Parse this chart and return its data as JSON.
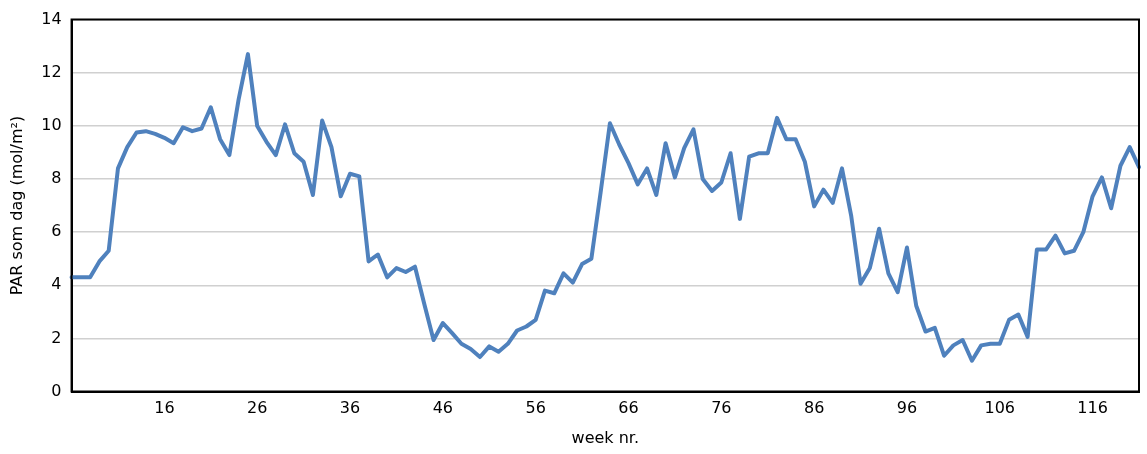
{
  "chart_data": {
    "type": "line",
    "xlabel": "week nr.",
    "ylabel": "PAR som dag (mol/m²)",
    "categories": [
      null,
      null,
      null,
      null,
      null,
      null,
      null,
      null,
      null,
      null,
      "16",
      null,
      null,
      null,
      null,
      null,
      null,
      null,
      null,
      null,
      "26",
      null,
      null,
      null,
      null,
      null,
      null,
      null,
      null,
      null,
      "36",
      null,
      null,
      null,
      null,
      null,
      null,
      null,
      null,
      null,
      "46",
      null,
      null,
      null,
      null,
      null,
      null,
      null,
      null,
      null,
      "56",
      null,
      null,
      null,
      null,
      null,
      null,
      null,
      null,
      null,
      "66",
      null,
      null,
      null,
      null,
      null,
      null,
      null,
      null,
      null,
      "76",
      null,
      null,
      null,
      null,
      null,
      null,
      null,
      null,
      null,
      "86",
      null,
      null,
      null,
      null,
      null,
      null,
      null,
      null,
      null,
      "96",
      null,
      null,
      null,
      null,
      null,
      null,
      null,
      null,
      null,
      "106",
      null,
      null,
      null,
      null,
      null,
      null,
      null,
      null,
      null,
      "116",
      null,
      null,
      null,
      null,
      null
    ],
    "series": [
      {
        "color": "#4f81bd",
        "values": [
          4.3,
          4.3,
          4.3,
          4.9,
          5.3,
          8.4,
          9.2,
          9.75,
          9.8,
          9.7,
          9.55,
          9.35,
          9.95,
          9.8,
          9.9,
          10.7,
          9.5,
          8.9,
          11.0,
          12.7,
          10.0,
          9.4,
          8.9,
          10.06,
          8.97,
          8.65,
          7.4,
          10.2,
          9.2,
          7.35,
          8.2,
          8.1,
          4.9,
          5.16,
          4.3,
          4.65,
          4.5,
          4.7,
          3.3,
          1.94,
          2.58,
          2.2,
          1.8,
          1.6,
          1.3,
          1.7,
          1.5,
          1.8,
          2.3,
          2.45,
          2.7,
          3.8,
          3.7,
          4.45,
          4.1,
          4.8,
          5.0,
          7.5,
          10.1,
          9.3,
          8.6,
          7.8,
          8.4,
          7.4,
          9.35,
          8.06,
          9.16,
          9.87,
          8.0,
          7.55,
          7.87,
          8.97,
          6.5,
          8.84,
          8.97,
          8.97,
          10.3,
          9.5,
          9.5,
          8.65,
          6.97,
          7.6,
          7.1,
          8.4,
          6.6,
          4.06,
          4.65,
          6.13,
          4.45,
          3.74,
          5.42,
          3.23,
          2.26,
          2.4,
          1.35,
          1.74,
          1.94,
          1.16,
          1.74,
          1.8,
          1.8,
          2.7,
          2.9,
          2.06,
          5.35,
          5.35,
          5.87,
          5.2,
          5.3,
          6.0,
          7.35,
          8.06,
          6.9,
          8.5,
          9.2,
          8.45
        ]
      }
    ],
    "ylim": [
      0,
      14
    ],
    "yticks": [
      0,
      2,
      4,
      6,
      8,
      10,
      12,
      14
    ],
    "grid": "y",
    "legend": false,
    "marker": "none",
    "line_style": "solid"
  }
}
